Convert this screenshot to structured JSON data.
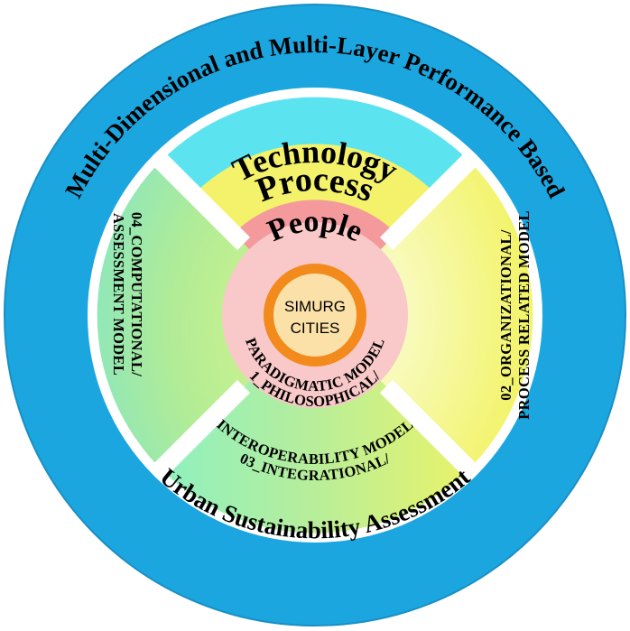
{
  "outer_ring": {
    "top_text": "Multi-Dimensional and Multi-Layer Performance Based",
    "bottom_text": "Urban Sustainability Assessment"
  },
  "layers": {
    "technology": "Technology",
    "process": "Process",
    "people": "People"
  },
  "models": {
    "philosophical": [
      "1_PHILOSOPHICAL/",
      "PARADIGMATIC MODEL"
    ],
    "organizational": [
      "02_ORGANIZATIONAL/",
      "PROCESS RELATED MODEL"
    ],
    "integrational": [
      "03_INTEGRATIONAL/",
      "INTEROPERABILITY MODEL"
    ],
    "computational": [
      "04_COMPUTATIONAL/",
      "ASSESSMENT  MODEL"
    ]
  },
  "center": {
    "line1": "SIMURG",
    "line2": "CITIES"
  },
  "colors": {
    "outer_ring": "#1ba6e0",
    "technology": "#5be4f0",
    "process": "#f4f26a",
    "people": "#f49a9c",
    "inner_disc": "#f9c8c8",
    "center_ring": "#f28a1c",
    "center_fill": "#fbe0a8"
  }
}
